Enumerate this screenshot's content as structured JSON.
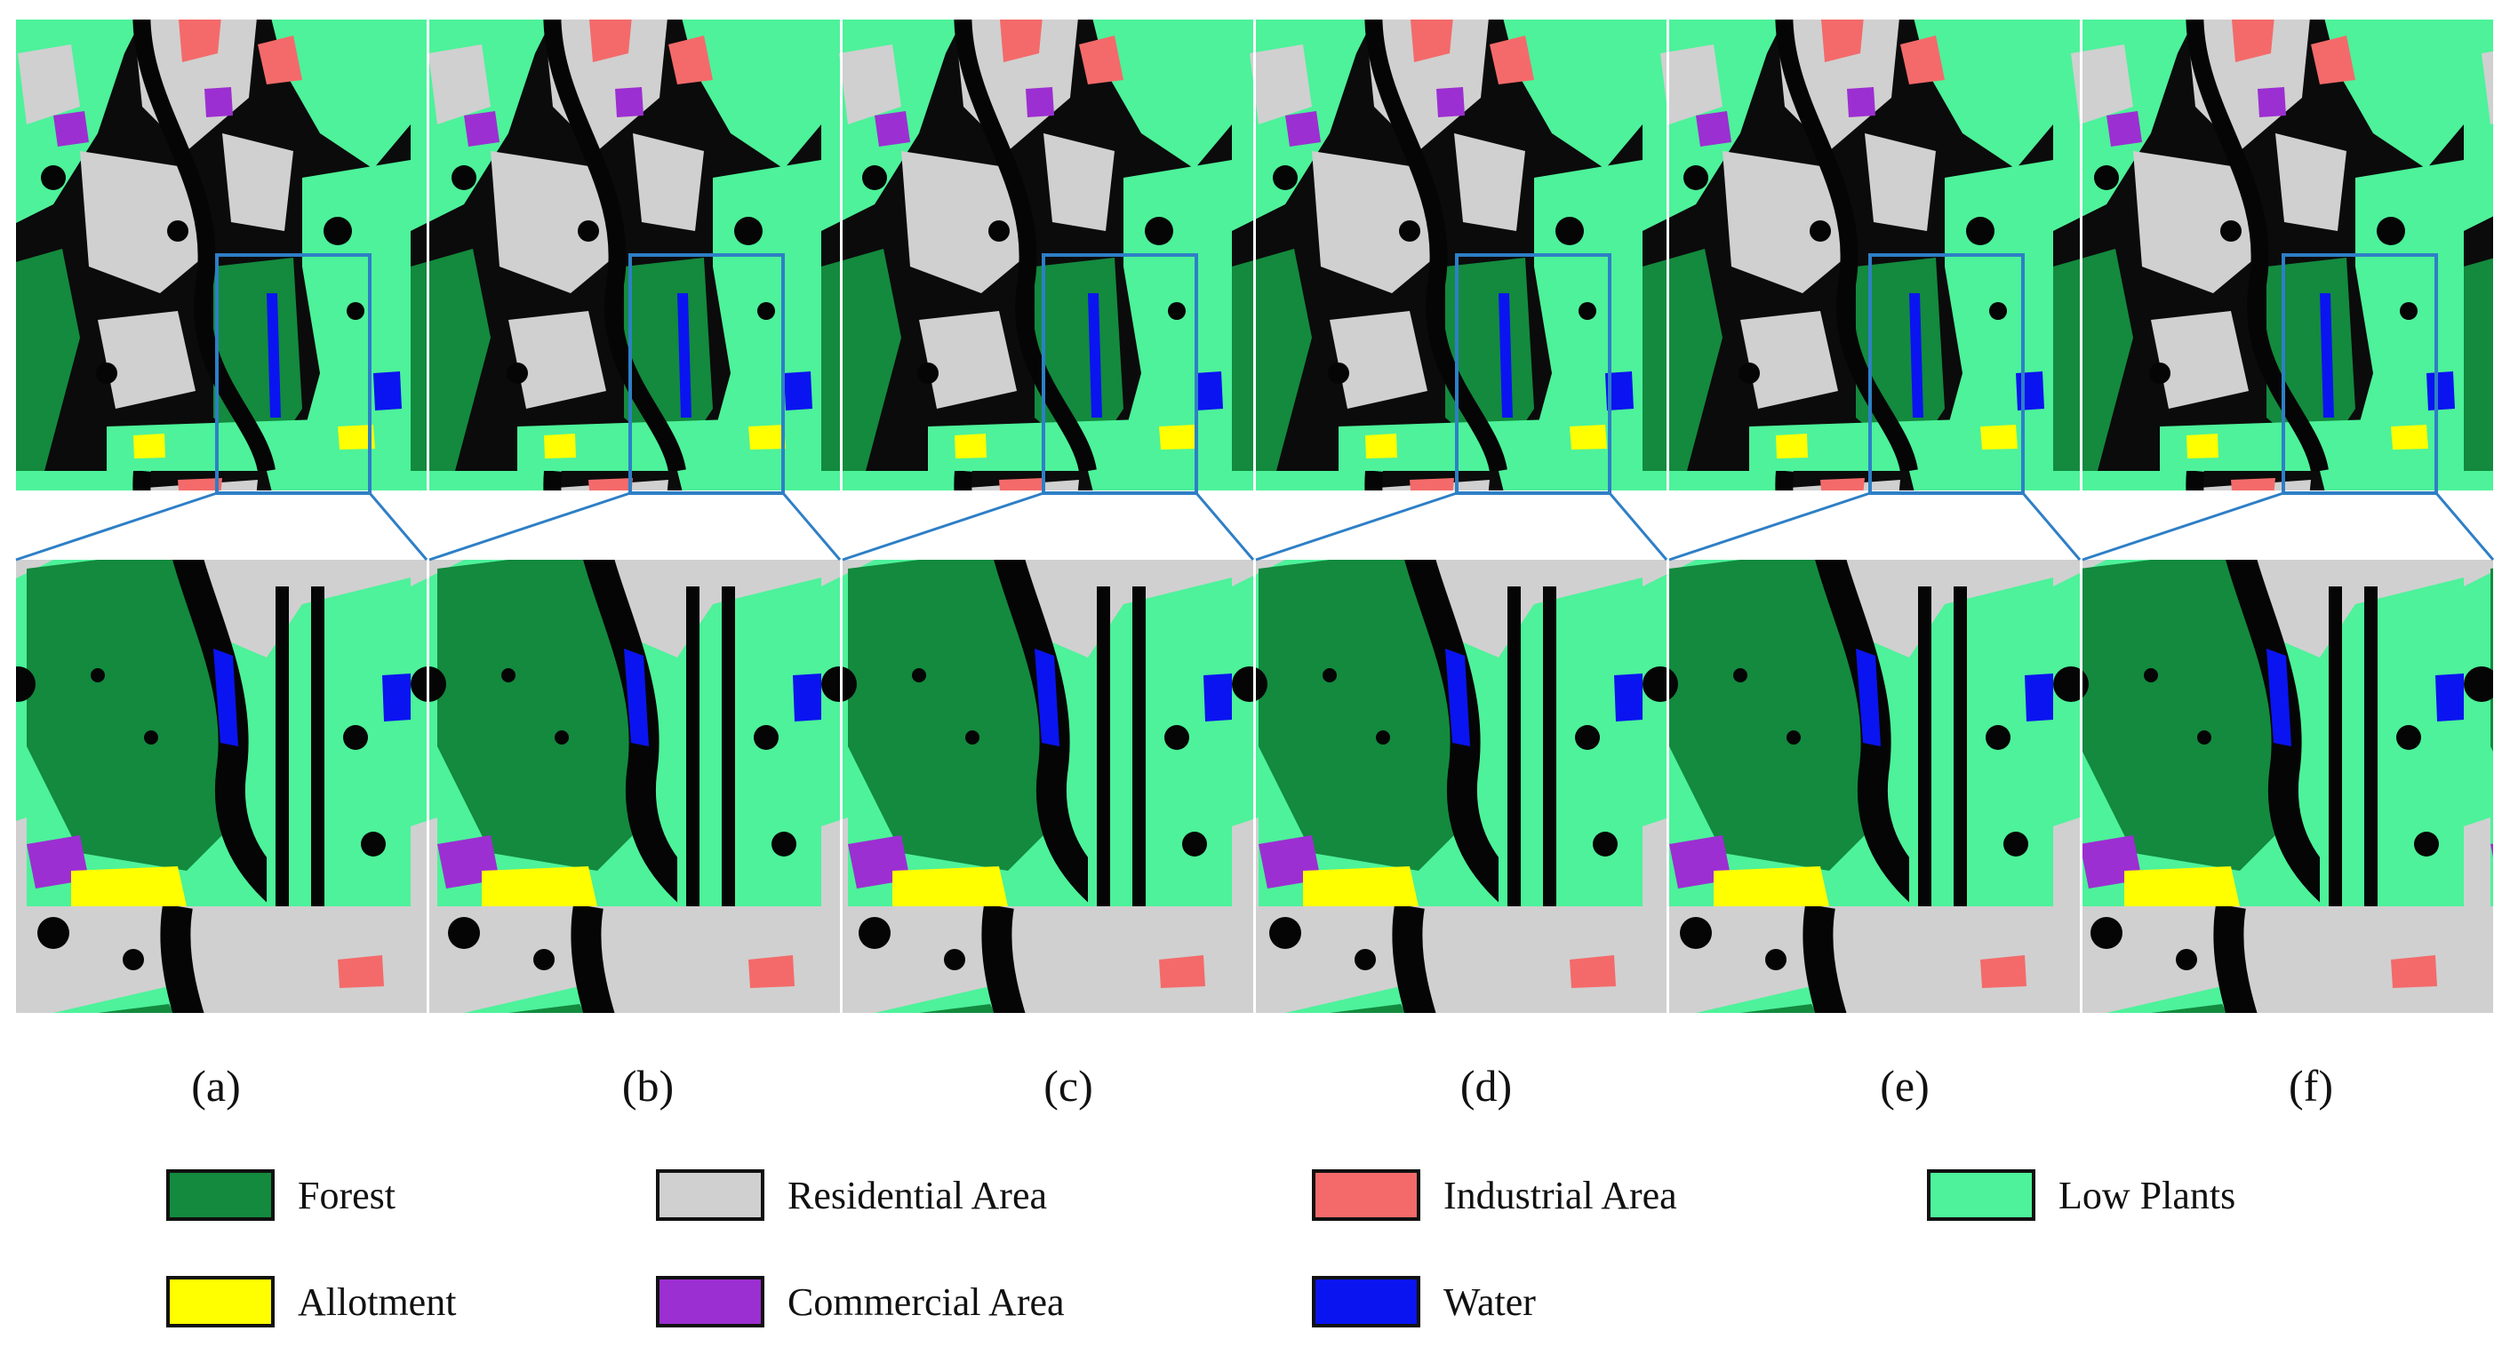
{
  "figure": {
    "panel_labels": [
      "(a)",
      "(b)",
      "(c)",
      "(d)",
      "(e)",
      "(f)"
    ],
    "zoom_box_color": "#2E7FC6",
    "legend": [
      {
        "name": "Forest",
        "color": "#138A3E"
      },
      {
        "name": "Residential Area",
        "color": "#D0D0D0"
      },
      {
        "name": "Industrial Area",
        "color": "#F46A6A"
      },
      {
        "name": "Low Plants",
        "color": "#4DF29A"
      },
      {
        "name": "Allotment",
        "color": "#FFFF00"
      },
      {
        "name": "Commercial Area",
        "color": "#9C2FD1"
      },
      {
        "name": "Water",
        "color": "#0A14F0"
      }
    ],
    "background_class_color": "#000000"
  }
}
